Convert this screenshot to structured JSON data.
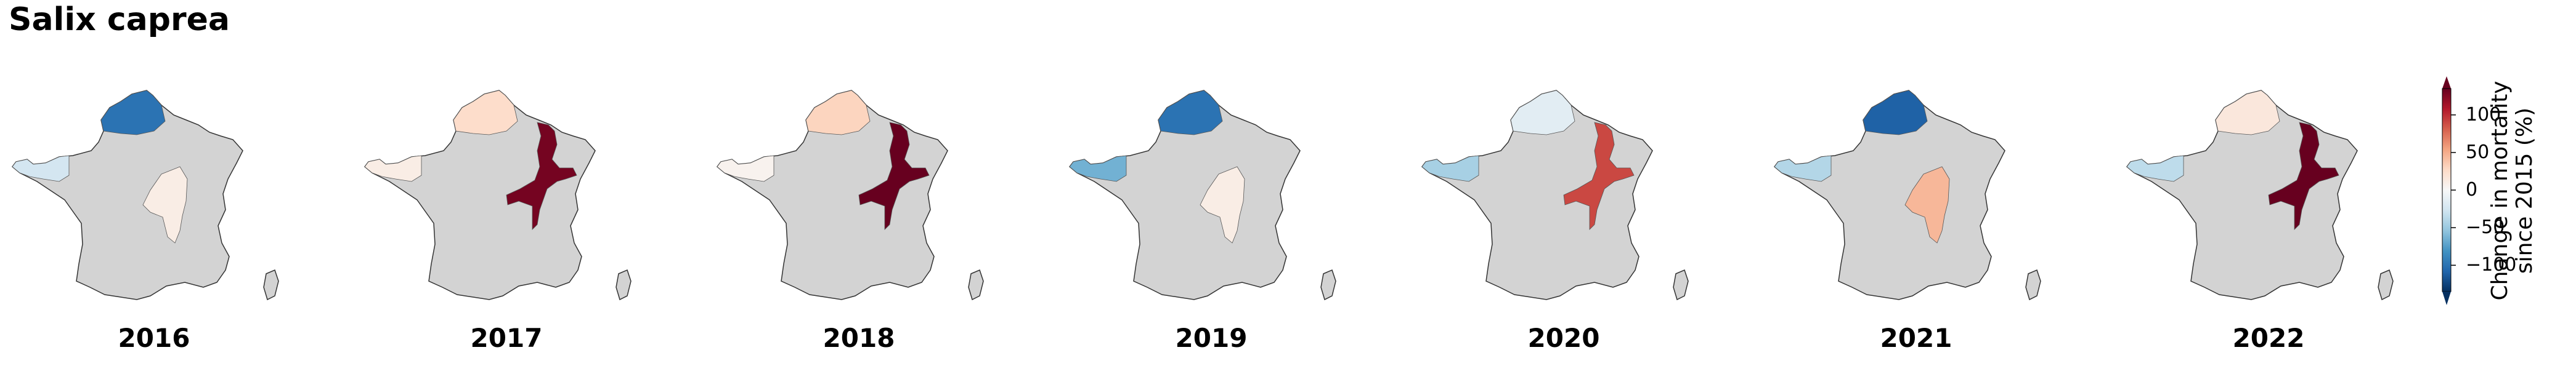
{
  "title": "Salix caprea",
  "panels": [
    {
      "year": "2016",
      "regions": {
        "brittany": -25,
        "normandy": -100,
        "northeast": 0,
        "east": 10
      }
    },
    {
      "year": "2017",
      "regions": {
        "brittany": 10,
        "normandy": 25,
        "northeast": 130,
        "east": 0
      }
    },
    {
      "year": "2018",
      "regions": {
        "brittany": 5,
        "normandy": 30,
        "northeast": 135,
        "east": 0
      }
    },
    {
      "year": "2019",
      "regions": {
        "brittany": -65,
        "normandy": -100,
        "northeast": 0,
        "east": 10
      }
    },
    {
      "year": "2020",
      "regions": {
        "brittany": -45,
        "normandy": -15,
        "northeast": 90,
        "east": 0
      }
    },
    {
      "year": "2021",
      "regions": {
        "brittany": -40,
        "normandy": -110,
        "northeast": 0,
        "east": 45
      }
    },
    {
      "year": "2022",
      "regions": {
        "brittany": -35,
        "normandy": 15,
        "northeast": 140,
        "east": 0
      }
    }
  ],
  "colorbar": {
    "title": "Change in mortality since 2015 (%)",
    "title_line1": "Change in mortality",
    "title_line2": "since 2015 (%)",
    "ticks": [
      "100",
      "50",
      "0",
      "−50",
      "−100"
    ],
    "tick_values": [
      100,
      50,
      0,
      -50,
      -100
    ],
    "range": [
      -135,
      135
    ],
    "colormap": "RdBu_r",
    "extend": "both"
  },
  "colors": {
    "no_data": "#d3d3d3",
    "outline": "#333333"
  }
}
